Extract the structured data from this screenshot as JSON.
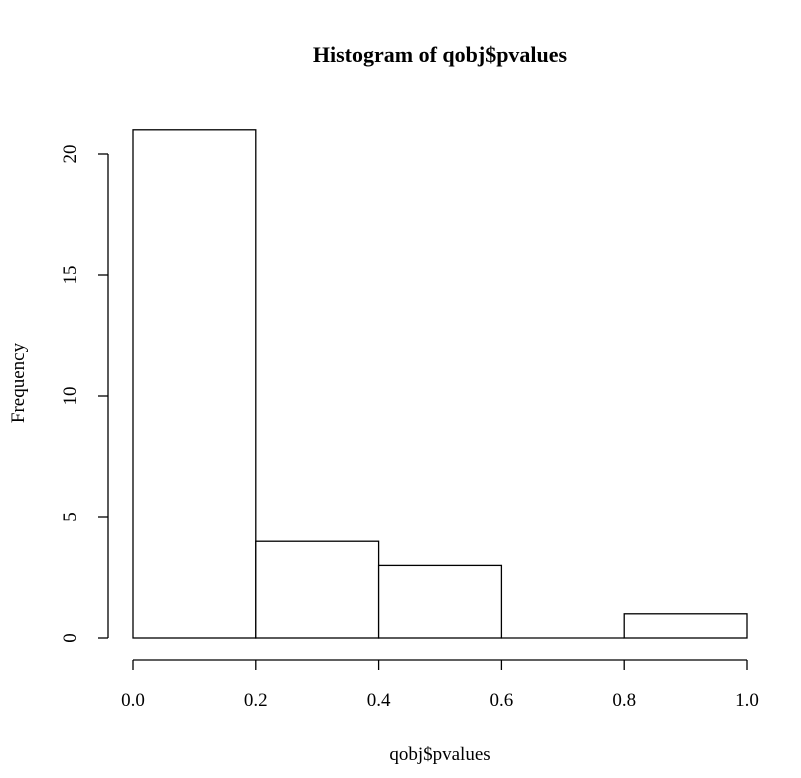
{
  "chart_data": {
    "type": "bar",
    "title": "Histogram of qobj$pvalues",
    "xlabel": "qobj$pvalues",
    "ylabel": "Frequency",
    "bins": [
      {
        "from": 0.0,
        "to": 0.2,
        "count": 21
      },
      {
        "from": 0.2,
        "to": 0.4,
        "count": 4
      },
      {
        "from": 0.4,
        "to": 0.6,
        "count": 3
      },
      {
        "from": 0.6,
        "to": 0.8,
        "count": 0
      },
      {
        "from": 0.8,
        "to": 1.0,
        "count": 1
      }
    ],
    "xlim": [
      0.0,
      1.0
    ],
    "ylim": [
      0,
      21
    ],
    "x_ticks": [
      "0.0",
      "0.2",
      "0.4",
      "0.6",
      "0.8",
      "1.0"
    ],
    "y_ticks": [
      "0",
      "5",
      "10",
      "15",
      "20"
    ],
    "grid": false,
    "bar_color": "#ffffff",
    "edge_color": "#000000"
  }
}
